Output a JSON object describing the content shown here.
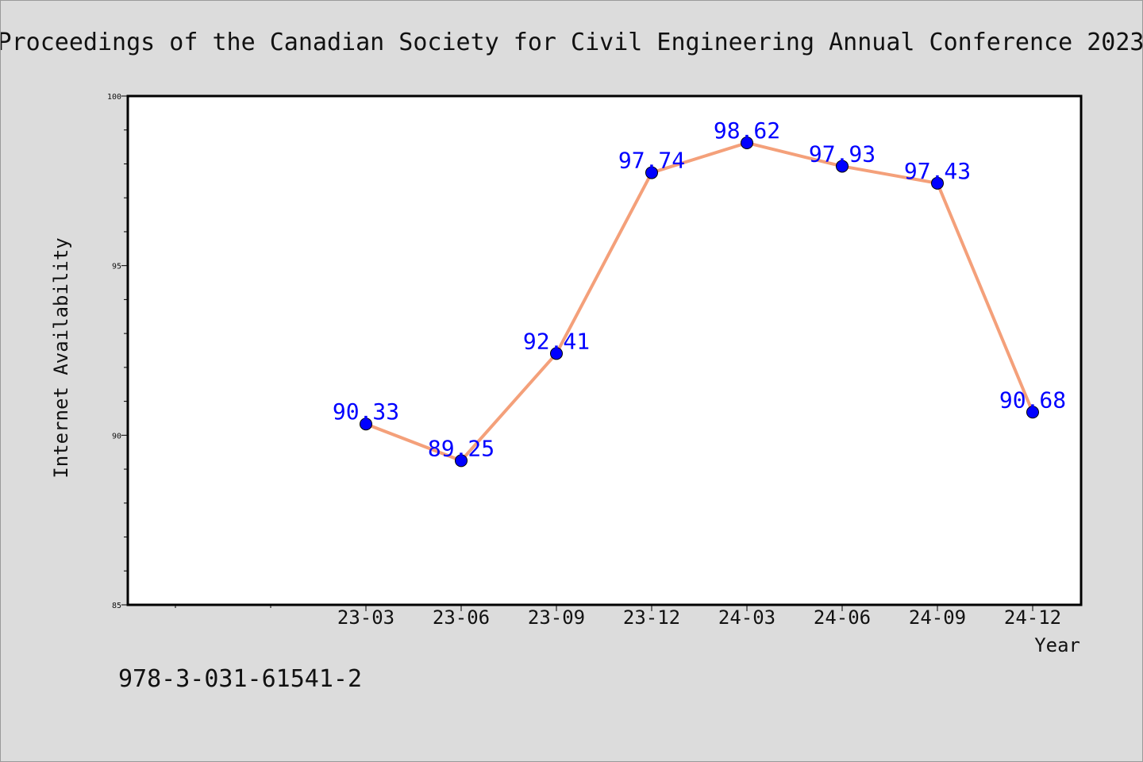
{
  "header": {
    "title": "Proceedings of the Canadian Society for Civil Engineering Annual Conference 2023"
  },
  "footer": {
    "isbn": "978-3-031-61541-2"
  },
  "chart_data": {
    "type": "line",
    "title": "",
    "xlabel": "Year",
    "ylabel": "Internet Availability",
    "categories": [
      "23-03",
      "23-06",
      "23-09",
      "23-12",
      "24-03",
      "24-06",
      "24-09",
      "24-12"
    ],
    "series": [
      {
        "values": [
          90.33,
          89.25,
          92.41,
          97.74,
          98.62,
          97.93,
          97.43,
          90.68
        ],
        "data_labels": [
          "90.33",
          "89.25",
          "92.41",
          "97.74",
          "98.62",
          "97.93",
          "97.43",
          "90.68"
        ],
        "line_color": "#f4a07a",
        "marker_color": "#0000ff"
      }
    ],
    "ylim": [
      85,
      100
    ],
    "yticks": [
      85,
      90,
      95,
      100
    ],
    "ytick_labels": [
      "85",
      "90",
      "95",
      "100"
    ],
    "grid": false,
    "legend": "none",
    "plot_background": "#ffffff",
    "page_background": "#dcdcdc"
  }
}
